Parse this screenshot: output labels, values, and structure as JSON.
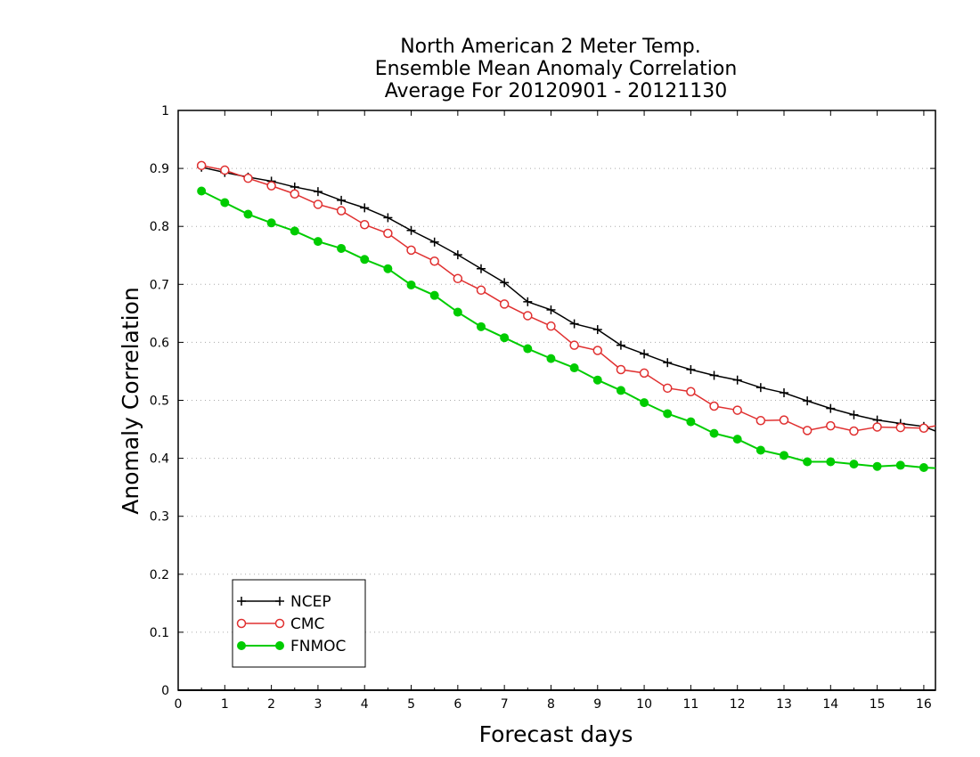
{
  "chart_data": {
    "type": "line",
    "title": [
      "North American 2 Meter Temp.",
      "Ensemble Mean Anomaly Correlation",
      "Average For 20120901 - 20121130"
    ],
    "xlabel": "Forecast days",
    "ylabel": "Anomaly Correlation",
    "xlim": [
      0,
      16.25
    ],
    "ylim": [
      0,
      1
    ],
    "xticks": [
      "0",
      "1",
      "2",
      "3",
      "4",
      "5",
      "6",
      "7",
      "8",
      "9",
      "10",
      "11",
      "12",
      "13",
      "14",
      "15",
      "16"
    ],
    "yticks": [
      "0",
      "0.1",
      "0.2",
      "0.3",
      "0.4",
      "0.5",
      "0.6",
      "0.7",
      "0.8",
      "0.9",
      "1"
    ],
    "grid": "horizontal dotted",
    "legend_position": "bottom-left",
    "x": [
      0.5,
      1,
      1.5,
      2,
      2.5,
      3,
      3.5,
      4,
      4.5,
      5,
      5.5,
      6,
      6.5,
      7,
      7.5,
      8,
      8.5,
      9,
      9.5,
      10,
      10.5,
      11,
      11.5,
      12,
      12.5,
      13,
      13.5,
      14,
      14.5,
      15,
      15.5,
      16,
      16.25
    ],
    "series": [
      {
        "name": "NCEP",
        "color": "#000000",
        "marker": "plus",
        "values": [
          0.902,
          0.893,
          0.885,
          0.878,
          0.868,
          0.86,
          0.845,
          0.832,
          0.815,
          0.793,
          0.773,
          0.751,
          0.727,
          0.703,
          0.67,
          0.656,
          0.632,
          0.622,
          0.595,
          0.58,
          0.565,
          0.553,
          0.543,
          0.535,
          0.522,
          0.513,
          0.499,
          0.486,
          0.475,
          0.466,
          0.46,
          0.455,
          0.447
        ]
      },
      {
        "name": "CMC",
        "color": "#e03030",
        "marker": "open-circle",
        "values": [
          0.905,
          0.897,
          0.883,
          0.87,
          0.856,
          0.838,
          0.827,
          0.803,
          0.788,
          0.759,
          0.74,
          0.71,
          0.69,
          0.666,
          0.646,
          0.628,
          0.595,
          0.586,
          0.553,
          0.547,
          0.521,
          0.515,
          0.49,
          0.483,
          0.465,
          0.466,
          0.448,
          0.456,
          0.447,
          0.454,
          0.453,
          0.452,
          0.456
        ]
      },
      {
        "name": "FNMOC",
        "color": "#00cc00",
        "marker": "filled-circle",
        "values": [
          0.861,
          0.841,
          0.821,
          0.806,
          0.792,
          0.774,
          0.762,
          0.743,
          0.727,
          0.699,
          0.681,
          0.652,
          0.627,
          0.608,
          0.589,
          0.572,
          0.556,
          0.535,
          0.517,
          0.496,
          0.477,
          0.463,
          0.443,
          0.433,
          0.414,
          0.405,
          0.394,
          0.394,
          0.39,
          0.386,
          0.388,
          0.384,
          0.383
        ]
      }
    ]
  }
}
